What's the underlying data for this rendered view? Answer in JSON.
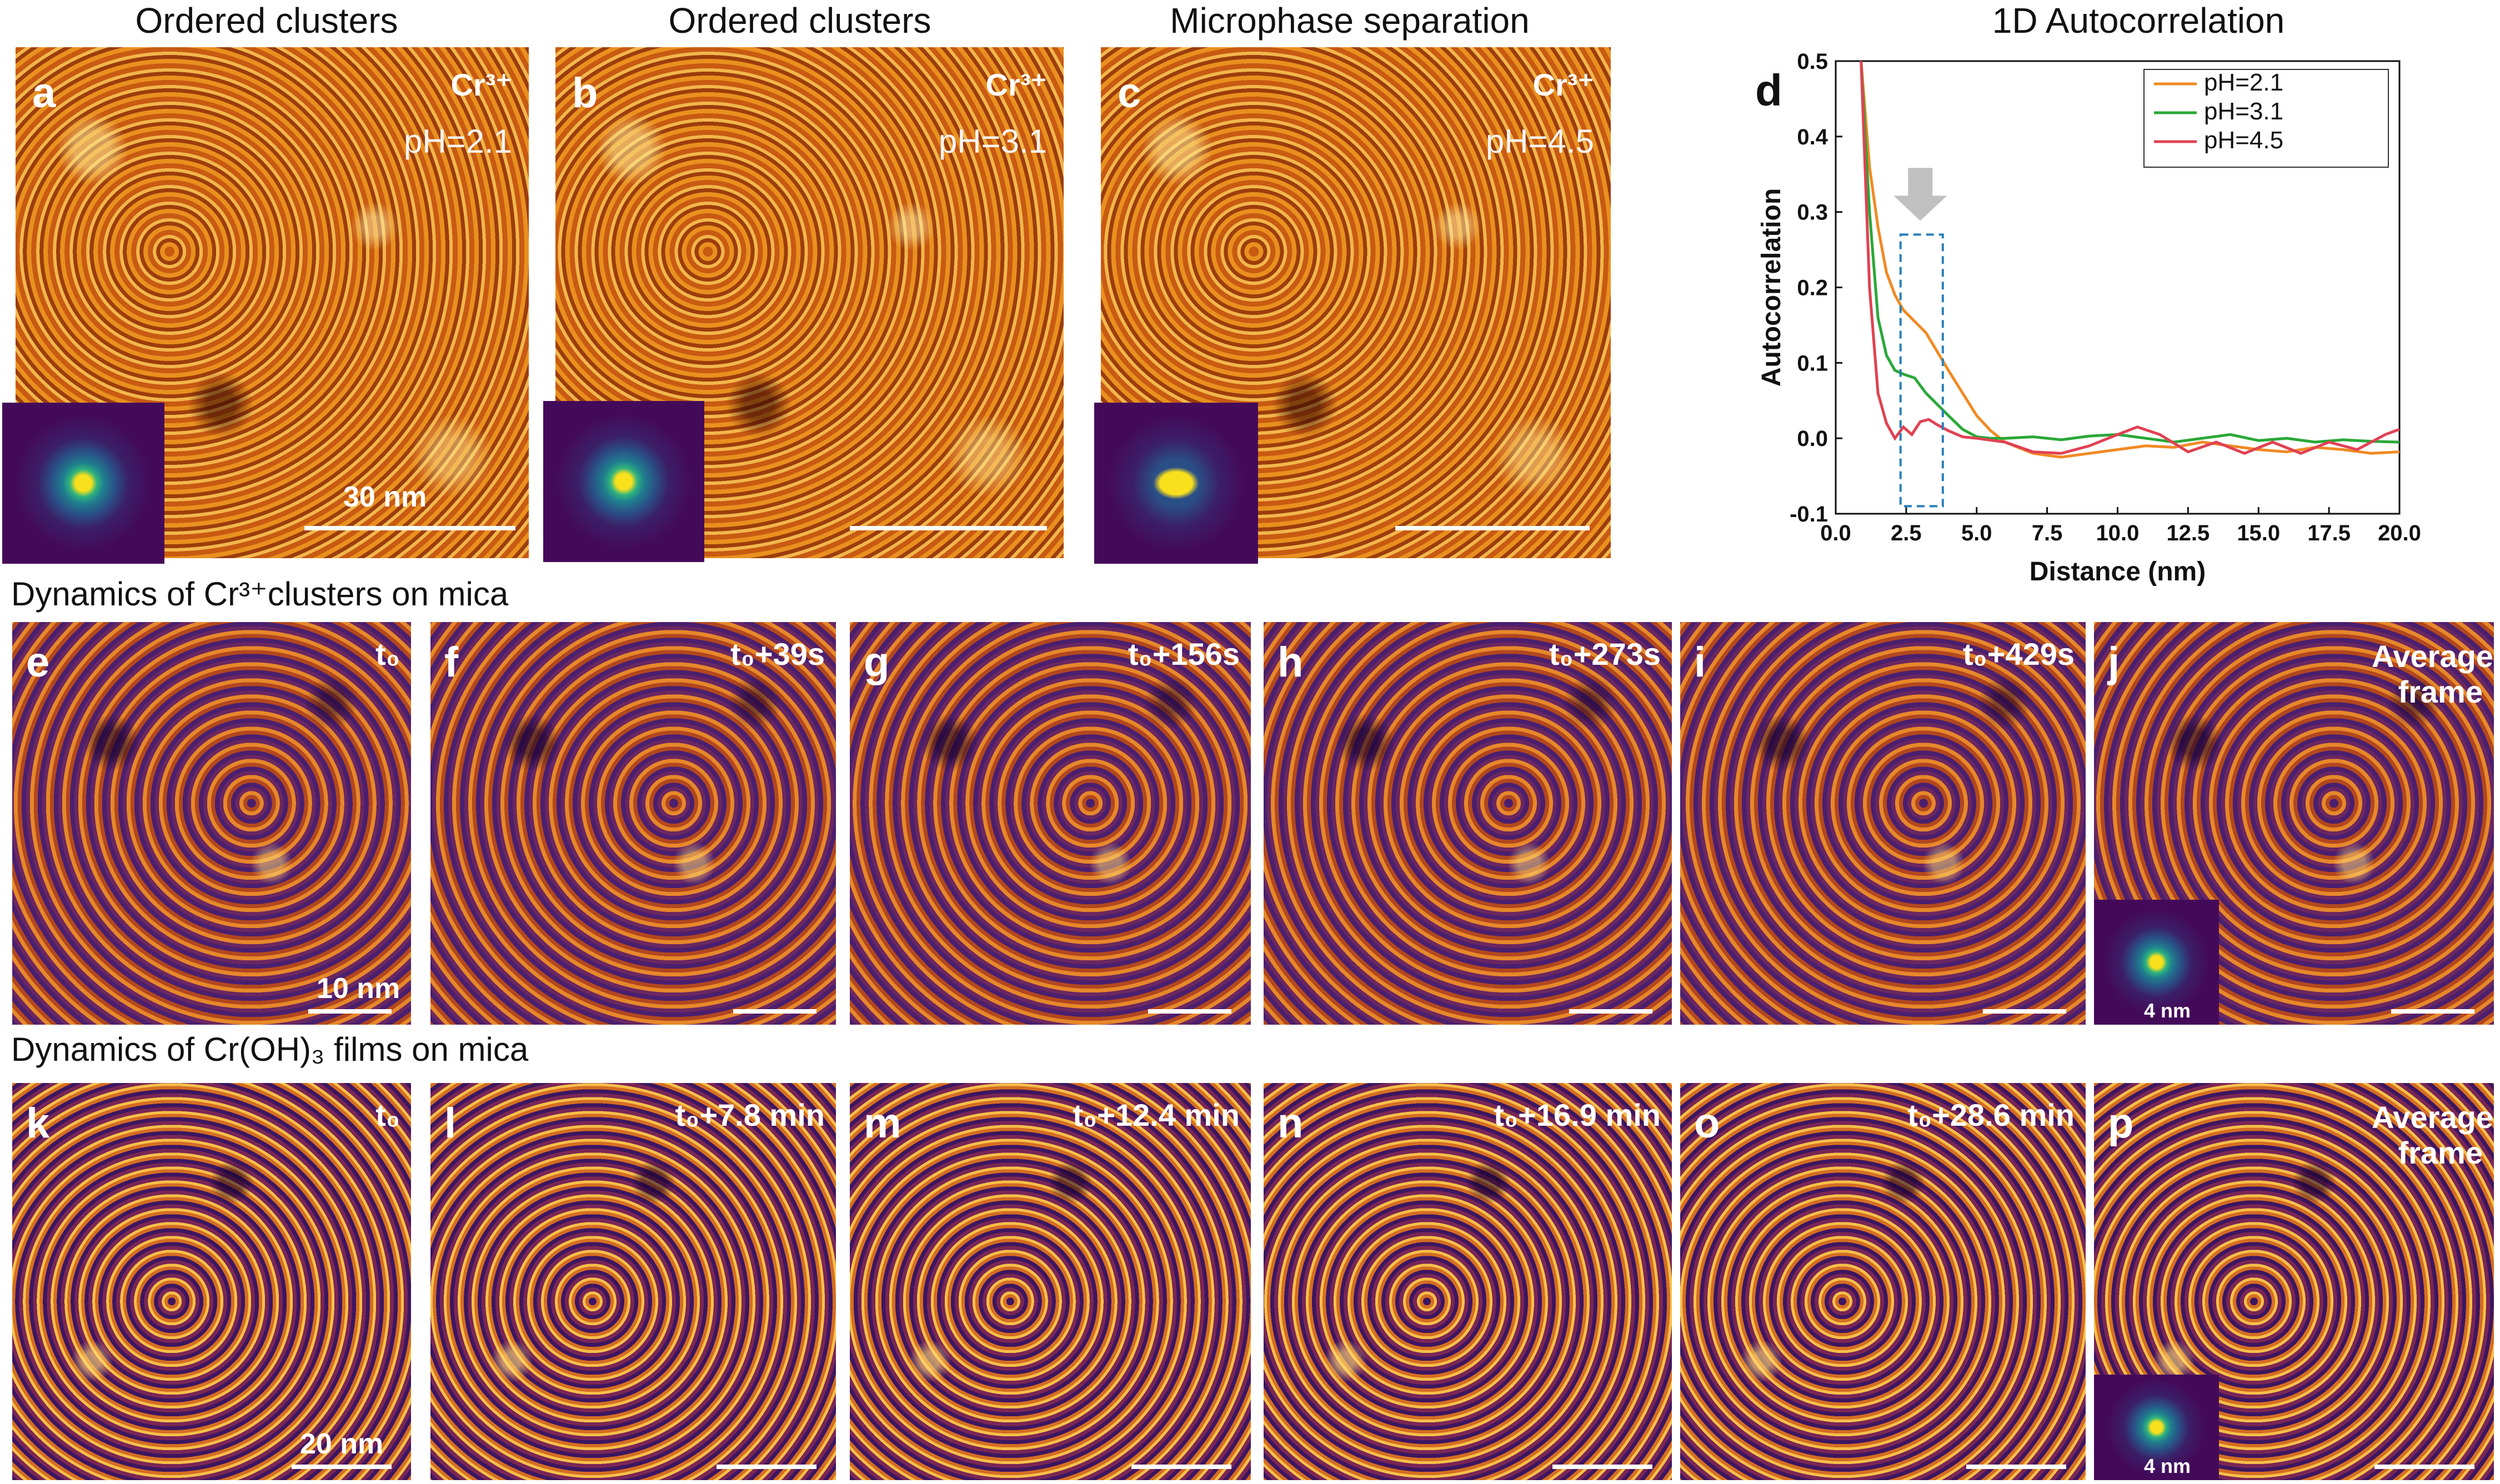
{
  "top_titles": {
    "a": "Ordered clusters",
    "b": "Ordered clusters",
    "c": "Microphase separation",
    "d": "1D Autocorrelation"
  },
  "panels_top": [
    {
      "letter": "a",
      "ion": "Cr³⁺",
      "ph": "pH=2.1",
      "scale_label": "30 nm"
    },
    {
      "letter": "b",
      "ion": "Cr³⁺",
      "ph": "pH=3.1",
      "scale_label": ""
    },
    {
      "letter": "c",
      "ion": "Cr³⁺",
      "ph": "pH=4.5",
      "scale_label": ""
    }
  ],
  "row2_title": "Dynamics of Cr³⁺clusters on mica",
  "row2_panels": [
    {
      "letter": "e",
      "time": "t₀",
      "scale_label": "10 nm"
    },
    {
      "letter": "f",
      "time": "t₀+39s",
      "scale_label": ""
    },
    {
      "letter": "g",
      "time": "t₀+156s",
      "scale_label": ""
    },
    {
      "letter": "h",
      "time": "t₀+273s",
      "scale_label": ""
    },
    {
      "letter": "i",
      "time": "t₀+429s",
      "scale_label": ""
    },
    {
      "letter": "j",
      "time": "Averaged frame",
      "scale_label": "",
      "inset_label": "4 nm"
    }
  ],
  "row3_title": "Dynamics of Cr(OH)₃ films on mica",
  "row3_panels": [
    {
      "letter": "k",
      "time": "t₀",
      "scale_label": "20 nm"
    },
    {
      "letter": "l",
      "time": "t₀+7.8 min",
      "scale_label": ""
    },
    {
      "letter": "m",
      "time": "t₀+12.4 min",
      "scale_label": ""
    },
    {
      "letter": "n",
      "time": "t₀+16.9 min",
      "scale_label": ""
    },
    {
      "letter": "o",
      "time": "t₀+28.6 min",
      "scale_label": ""
    },
    {
      "letter": "p",
      "time": "Averaged frame",
      "scale_label": "",
      "inset_label": "4 nm"
    }
  ],
  "chart_data": {
    "type": "line",
    "panel_letter": "d",
    "xlabel": "Distance (nm)",
    "ylabel": "Autocorrelation",
    "xlim": [
      0.0,
      20.0
    ],
    "ylim": [
      -0.1,
      0.5
    ],
    "xticks": [
      "0.0",
      "2.5",
      "5.0",
      "7.5",
      "10.0",
      "12.5",
      "15.0",
      "17.5",
      "20.0"
    ],
    "yticks": [
      "-0.1",
      "0.0",
      "0.1",
      "0.2",
      "0.3",
      "0.4",
      "0.5"
    ],
    "legend_position": "top-right",
    "series": [
      {
        "name": "pH=2.1",
        "color": "#f08a24",
        "x": [
          0.9,
          1.2,
          1.5,
          1.8,
          2.1,
          2.4,
          2.8,
          3.2,
          3.6,
          4.0,
          4.5,
          5.0,
          5.5,
          6.0,
          7.0,
          8.0,
          9.0,
          10.0,
          11.0,
          12.0,
          13.0,
          14.0,
          15.0,
          16.0,
          17.0,
          18.0,
          19.0,
          20.0
        ],
        "y": [
          0.5,
          0.36,
          0.28,
          0.22,
          0.19,
          0.17,
          0.155,
          0.14,
          0.115,
          0.09,
          0.06,
          0.03,
          0.01,
          -0.005,
          -0.02,
          -0.025,
          -0.02,
          -0.015,
          -0.01,
          -0.012,
          -0.005,
          -0.01,
          -0.015,
          -0.018,
          -0.012,
          -0.015,
          -0.02,
          -0.018
        ]
      },
      {
        "name": "pH=3.1",
        "color": "#2aa838",
        "x": [
          0.9,
          1.2,
          1.5,
          1.8,
          2.1,
          2.4,
          2.8,
          3.2,
          3.6,
          4.0,
          4.5,
          5.0,
          5.5,
          6.0,
          7.0,
          8.0,
          9.0,
          10.0,
          11.0,
          12.0,
          13.0,
          14.0,
          15.0,
          16.0,
          17.0,
          18.0,
          19.0,
          20.0
        ],
        "y": [
          0.5,
          0.3,
          0.16,
          0.11,
          0.09,
          0.085,
          0.08,
          0.06,
          0.045,
          0.03,
          0.012,
          0.002,
          0.0,
          0.0,
          0.002,
          -0.002,
          0.003,
          0.005,
          0.0,
          -0.005,
          0.0,
          0.005,
          -0.003,
          0.0,
          -0.005,
          -0.002,
          -0.004,
          -0.005
        ]
      },
      {
        "name": "pH=4.5",
        "color": "#e04253",
        "x": [
          0.9,
          1.2,
          1.5,
          1.8,
          2.1,
          2.4,
          2.7,
          3.0,
          3.3,
          3.6,
          4.0,
          4.5,
          5.0,
          6.0,
          7.0,
          8.0,
          9.0,
          10.0,
          10.7,
          11.5,
          12.5,
          13.5,
          14.5,
          15.5,
          16.5,
          17.5,
          18.5,
          19.5,
          20.0
        ],
        "y": [
          0.5,
          0.2,
          0.06,
          0.02,
          0.0,
          0.015,
          0.005,
          0.022,
          0.025,
          0.018,
          0.01,
          0.002,
          0.0,
          -0.005,
          -0.018,
          -0.02,
          -0.01,
          0.005,
          0.015,
          0.005,
          -0.018,
          -0.005,
          -0.02,
          -0.005,
          -0.02,
          -0.005,
          -0.015,
          0.005,
          0.012
        ]
      }
    ],
    "annotations": {
      "highlight_box_x": [
        2.3,
        3.8
      ],
      "highlight_box_y": [
        -0.09,
        0.27
      ],
      "arrow_x": 3.0
    }
  }
}
